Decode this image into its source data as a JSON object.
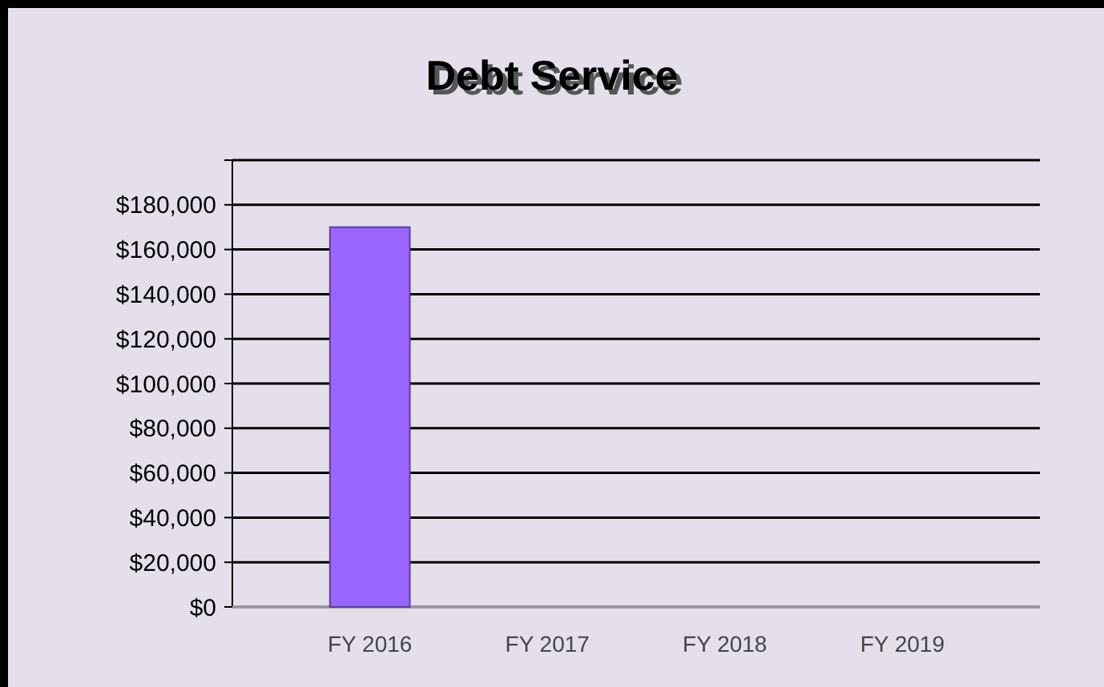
{
  "chart_data": {
    "type": "bar",
    "title": "Debt Service",
    "categories": [
      "FY 2016",
      "FY 2017",
      "FY 2018",
      "FY 2019"
    ],
    "values": [
      170000,
      0,
      0,
      0
    ],
    "color": "#9966ff",
    "ylim": [
      0,
      200000
    ],
    "yticks": [
      {
        "value": 0,
        "label": "$0"
      },
      {
        "value": 20000,
        "label": "$20,000"
      },
      {
        "value": 40000,
        "label": "$40,000"
      },
      {
        "value": 60000,
        "label": "$60,000"
      },
      {
        "value": 80000,
        "label": "$80,000"
      },
      {
        "value": 100000,
        "label": "$100,000"
      },
      {
        "value": 120000,
        "label": "$120,000"
      },
      {
        "value": 140000,
        "label": "$140,000"
      },
      {
        "value": 160000,
        "label": "$160,000"
      },
      {
        "value": 180000,
        "label": "$180,000"
      },
      {
        "value": 200000,
        "label": null
      }
    ],
    "grid": true
  }
}
